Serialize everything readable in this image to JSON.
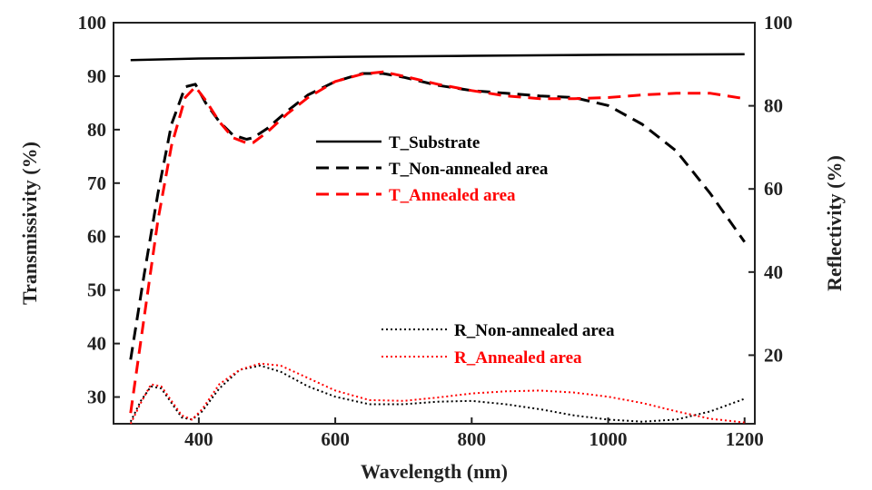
{
  "chart_data": {
    "type": "line",
    "xlabel": "Wavelength (nm)",
    "ylabel_left": "Transmissivity (%)",
    "ylabel_right": "Reflectivity (%)",
    "xlim": [
      275,
      1215
    ],
    "ylim_left": [
      25,
      100
    ],
    "ylim_right": [
      3.5,
      100
    ],
    "x_ticks": [
      400,
      600,
      800,
      1000,
      1200
    ],
    "x_tick_labels": [
      "400",
      "600",
      "800",
      "1000",
      "1200"
    ],
    "y_left_ticks": [
      30,
      40,
      50,
      60,
      70,
      80,
      90,
      100
    ],
    "y_left_tick_labels": [
      "30",
      "40",
      "50",
      "60",
      "70",
      "80",
      "90",
      "100"
    ],
    "y_right_ticks": [
      20,
      40,
      60,
      80,
      100
    ],
    "y_right_tick_labels": [
      "20",
      "40",
      "60",
      "80",
      "100"
    ],
    "grid": false,
    "legend_placement": "center",
    "series": [
      {
        "name": "T_Substrate",
        "axis": "left",
        "color": "#000000",
        "style": "solid",
        "x": [
          300,
          400,
          600,
          800,
          1000,
          1200
        ],
        "y": [
          93.0,
          93.3,
          93.6,
          93.8,
          94.0,
          94.1
        ]
      },
      {
        "name": "T_Non-annealed area",
        "axis": "left",
        "color": "#000000",
        "style": "dashed",
        "x": [
          300,
          320,
          340,
          360,
          380,
          395,
          410,
          430,
          450,
          470,
          480,
          500,
          530,
          560,
          600,
          640,
          670,
          700,
          750,
          800,
          850,
          900,
          950,
          1000,
          1050,
          1100,
          1150,
          1200
        ],
        "y": [
          37,
          53,
          68,
          81,
          88,
          88.5,
          85,
          81.5,
          79,
          78.2,
          78.5,
          80.2,
          83.5,
          86.5,
          89,
          90.5,
          90.5,
          89.8,
          88.3,
          87.3,
          86.8,
          86.3,
          86,
          84.5,
          81,
          76,
          68,
          59
        ]
      },
      {
        "name": "T_Annealed area",
        "axis": "left",
        "color": "#ff0000",
        "style": "dashed",
        "x": [
          300,
          320,
          340,
          360,
          380,
          395,
          410,
          430,
          450,
          470,
          480,
          500,
          530,
          560,
          600,
          640,
          670,
          700,
          750,
          800,
          850,
          900,
          950,
          1000,
          1050,
          1100,
          1150,
          1200
        ],
        "y": [
          27,
          45,
          63,
          77,
          86,
          88,
          85.5,
          81.5,
          78.5,
          77.5,
          77.6,
          79.5,
          83,
          86,
          89,
          90.4,
          90.8,
          90,
          88.5,
          87.3,
          86.3,
          85.8,
          85.8,
          86,
          86.5,
          86.8,
          86.8,
          85.8
        ]
      },
      {
        "name": "R_Non-annealed area",
        "axis": "right",
        "color": "#000000",
        "style": "dotted",
        "x": [
          300,
          315,
          330,
          345,
          360,
          375,
          390,
          405,
          430,
          460,
          490,
          520,
          560,
          600,
          650,
          700,
          750,
          800,
          850,
          900,
          950,
          1000,
          1050,
          1100,
          1150,
          1200
        ],
        "y": [
          4,
          9,
          12.5,
          12,
          8.5,
          5,
          4.5,
          6.5,
          12,
          16.5,
          17.5,
          16,
          12.5,
          10,
          8.2,
          8.2,
          8.8,
          9,
          8.2,
          7,
          5.5,
          4.5,
          4,
          4.5,
          6.5,
          9.5
        ]
      },
      {
        "name": "R_Annealed area",
        "axis": "right",
        "color": "#ff0000",
        "style": "dotted",
        "x": [
          300,
          315,
          330,
          345,
          360,
          375,
          390,
          405,
          430,
          460,
          490,
          520,
          560,
          600,
          650,
          700,
          750,
          800,
          850,
          900,
          950,
          1000,
          1050,
          1100,
          1150,
          1200
        ],
        "y": [
          3.5,
          8.5,
          13,
          12.5,
          9,
          5.5,
          4.5,
          7,
          13,
          16.5,
          18,
          17.5,
          14.5,
          11.5,
          9.2,
          9,
          9.8,
          10.8,
          11.3,
          11.5,
          11,
          10,
          8.5,
          6.5,
          4.7,
          3.8
        ]
      }
    ]
  }
}
